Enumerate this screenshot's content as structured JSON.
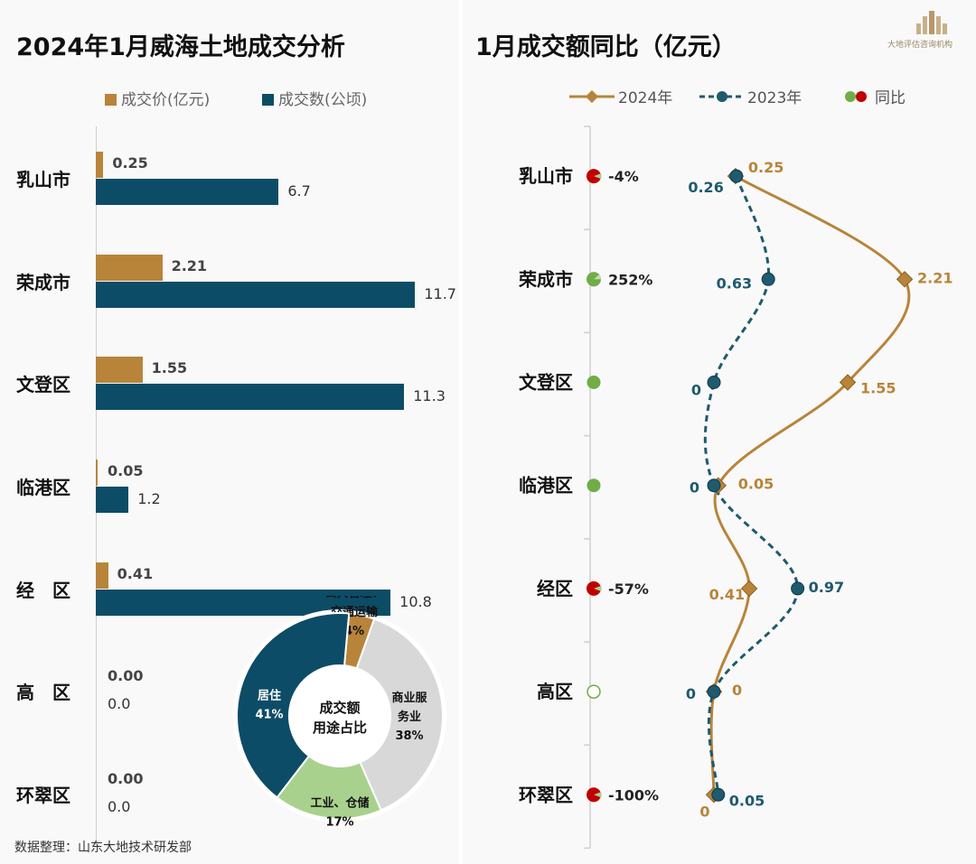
{
  "logo_text": "大地评估咨询机构",
  "footer": "数据整理：山东大地技术研发部",
  "chart_data": [
    {
      "type": "bar",
      "title": "2024年1月威海土地成交分析",
      "orientation": "horizontal",
      "categories": [
        "乳山市",
        "荣成市",
        "文登区",
        "临港区",
        "经　区",
        "高　区",
        "环翠区"
      ],
      "series": [
        {
          "name": "成交价(亿元)",
          "color": "#b8843a",
          "values": [
            0.25,
            2.21,
            1.55,
            0.05,
            0.41,
            0.0,
            0.0
          ],
          "labels": [
            "0.25",
            "2.21",
            "1.55",
            "0.05",
            "0.41",
            "0.00",
            "0.00"
          ]
        },
        {
          "name": "成交数(公顷)",
          "color": "#0d4c66",
          "values": [
            6.7,
            11.7,
            11.3,
            1.2,
            10.8,
            0.0,
            0.0
          ],
          "labels": [
            "6.7",
            "11.7",
            "11.3",
            "1.2",
            "10.8",
            "0.0",
            "0.0"
          ]
        }
      ]
    },
    {
      "type": "pie",
      "variant": "donut",
      "center_label": [
        "成交额",
        "用途占比"
      ],
      "slices": [
        {
          "label": [
            "公共管理、",
            "交通运输"
          ],
          "value": 4,
          "pct": "4%",
          "color": "#b8843a"
        },
        {
          "label": [
            "商业服",
            "务业"
          ],
          "value": 38,
          "pct": "38%",
          "color": "#d8d8d8"
        },
        {
          "label": [
            "工业、仓储"
          ],
          "value": 17,
          "pct": "17%",
          "color": "#a9d18e"
        },
        {
          "label": [
            "居住"
          ],
          "value": 41,
          "pct": "41%",
          "color": "#0d4c66"
        }
      ]
    },
    {
      "type": "line",
      "title": "1月成交额同比（亿元）",
      "categories": [
        "乳山市",
        "荣成市",
        "文登区",
        "临港区",
        "经区",
        "高区",
        "环翠区"
      ],
      "series": [
        {
          "name": "2024年",
          "color": "#b8843a",
          "values": [
            0.25,
            2.21,
            1.55,
            0.05,
            0.41,
            0,
            0
          ],
          "labels": [
            "0.25",
            "2.21",
            "1.55",
            "0.05",
            "0.41",
            "0",
            "0"
          ]
        },
        {
          "name": "2023年",
          "color": "#1f5a6e",
          "values": [
            0.26,
            0.63,
            0,
            0,
            0.97,
            0,
            0.05
          ],
          "labels": [
            "0.26",
            "0.63",
            "0",
            "0",
            "0.97",
            "0",
            "0.05"
          ]
        }
      ],
      "yoy": {
        "name": "同比",
        "values": [
          "-4%",
          "252%",
          "",
          "",
          "-57%",
          "",
          "-100%"
        ],
        "markers": [
          "down",
          "up",
          "flat",
          "flat",
          "down",
          "none",
          "down"
        ]
      }
    }
  ]
}
